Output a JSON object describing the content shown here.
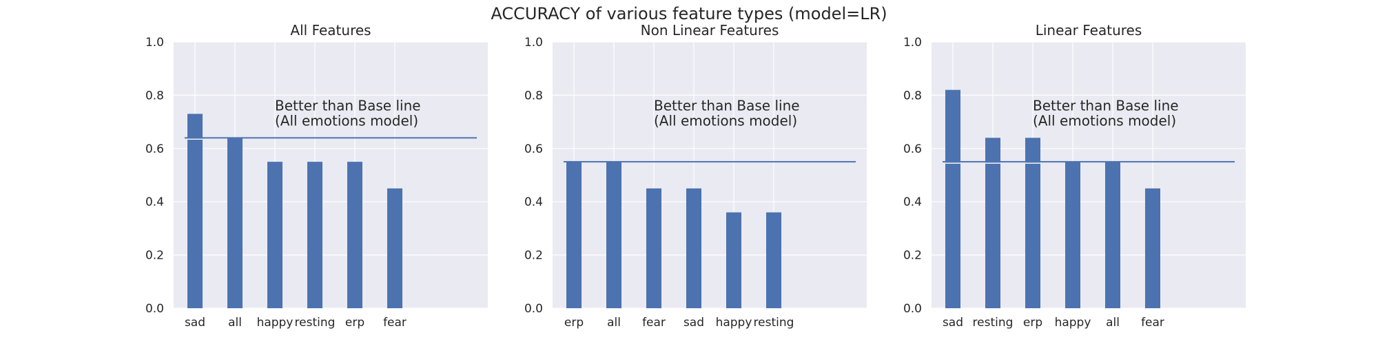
{
  "figure": {
    "title": "ACCURACY of various feature types (model=LR)"
  },
  "style": {
    "background": "#eaeaf2",
    "grid_color": "#ffffff",
    "bar_color": "#4c72b0",
    "line_color": "#4c72b0",
    "text_color": "#262626"
  },
  "chart_data": [
    {
      "type": "bar",
      "title": "All Features",
      "categories": [
        "sad",
        "all",
        "happy",
        "resting",
        "erp",
        "fear"
      ],
      "values": [
        0.73,
        0.64,
        0.55,
        0.55,
        0.55,
        0.45
      ],
      "ylim": [
        0,
        1.0
      ],
      "yticks": [
        0.0,
        0.2,
        0.4,
        0.6,
        0.8,
        1.0
      ],
      "ytick_labels": [
        "0.0",
        "0.2",
        "0.4",
        "0.6",
        "0.8",
        "1.0"
      ],
      "baseline": 0.64,
      "annotation": [
        "Better than Base line",
        "(All emotions model)"
      ],
      "grid": true
    },
    {
      "type": "bar",
      "title": "Non Linear Features",
      "categories": [
        "erp",
        "all",
        "fear",
        "sad",
        "happy",
        "resting"
      ],
      "values": [
        0.55,
        0.55,
        0.45,
        0.45,
        0.36,
        0.36
      ],
      "ylim": [
        0,
        1.0
      ],
      "yticks": [
        0.0,
        0.2,
        0.4,
        0.6,
        0.8,
        1.0
      ],
      "ytick_labels": [
        "0.0",
        "0.2",
        "0.4",
        "0.6",
        "0.8",
        "1.0"
      ],
      "baseline": 0.55,
      "annotation": [
        "Better than Base line",
        "(All emotions model)"
      ],
      "grid": true
    },
    {
      "type": "bar",
      "title": "Linear Features",
      "categories": [
        "sad",
        "resting",
        "erp",
        "happy",
        "all",
        "fear"
      ],
      "values": [
        0.82,
        0.64,
        0.64,
        0.55,
        0.55,
        0.45
      ],
      "ylim": [
        0,
        1.0
      ],
      "yticks": [
        0.0,
        0.2,
        0.4,
        0.6,
        0.8,
        1.0
      ],
      "ytick_labels": [
        "0.0",
        "0.2",
        "0.4",
        "0.6",
        "0.8",
        "1.0"
      ],
      "baseline": 0.55,
      "annotation": [
        "Better than Base line",
        "(All emotions model)"
      ],
      "grid": true
    }
  ]
}
